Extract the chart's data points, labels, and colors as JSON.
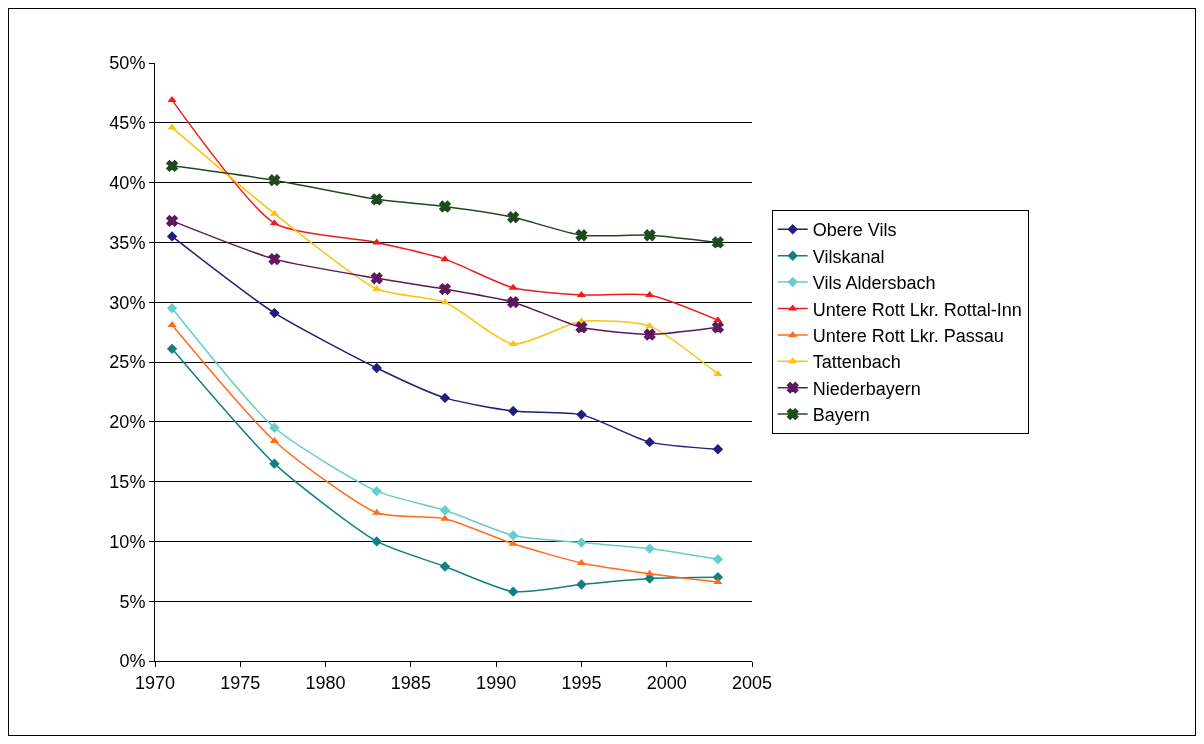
{
  "chart_data": {
    "type": "line",
    "x": [
      1971,
      1977,
      1983,
      1987,
      1991,
      1995,
      1999,
      2003
    ],
    "xlim": [
      1970,
      2005
    ],
    "xticks": [
      1970,
      1975,
      1980,
      1985,
      1990,
      1995,
      2000,
      2005
    ],
    "ylim": [
      0,
      50
    ],
    "yticks": [
      {
        "value": 0,
        "label": "0%"
      },
      {
        "value": 5,
        "label": "5%"
      },
      {
        "value": 10,
        "label": "10%"
      },
      {
        "value": 15,
        "label": "15%"
      },
      {
        "value": 20,
        "label": "20%"
      },
      {
        "value": 25,
        "label": "25%"
      },
      {
        "value": 30,
        "label": "30%"
      },
      {
        "value": 35,
        "label": "35%"
      },
      {
        "value": 40,
        "label": "40%"
      },
      {
        "value": 45,
        "label": "45%"
      },
      {
        "value": 50,
        "label": "50%"
      }
    ],
    "grid": "y",
    "legend": "right",
    "series": [
      {
        "name": "Obere Vils",
        "color": "#1f1f7a",
        "marker": "diamond",
        "values": [
          35.5,
          29.1,
          24.5,
          22.0,
          20.9,
          20.6,
          18.3,
          17.7
        ]
      },
      {
        "name": "Vilskanal",
        "color": "#138080",
        "marker": "diamond",
        "values": [
          26.1,
          16.5,
          10.0,
          7.9,
          5.8,
          6.4,
          6.9,
          7.0
        ]
      },
      {
        "name": "Vils Aldersbach",
        "color": "#66cccc",
        "marker": "diamond",
        "values": [
          29.5,
          19.5,
          14.2,
          12.6,
          10.5,
          9.9,
          9.4,
          8.5
        ]
      },
      {
        "name": "Untere Rott Lkr. Rottal-Inn",
        "color": "#ee1c1c",
        "marker": "triangle",
        "values": [
          46.9,
          36.6,
          35.0,
          33.6,
          31.2,
          30.6,
          30.6,
          28.5
        ]
      },
      {
        "name": "Untere Rott Lkr. Passau",
        "color": "#ff6a1f",
        "marker": "triangle",
        "values": [
          28.1,
          18.4,
          12.4,
          11.9,
          9.8,
          8.2,
          7.3,
          6.6
        ]
      },
      {
        "name": "Tattenbach",
        "color": "#ffc20e",
        "marker": "triangle",
        "values": [
          44.6,
          37.4,
          31.1,
          30.0,
          26.5,
          28.4,
          28.0,
          24.0
        ]
      },
      {
        "name": "Niederbayern",
        "color": "#5c1a5c",
        "marker": "cross",
        "values": [
          36.8,
          33.6,
          32.0,
          31.1,
          30.0,
          27.9,
          27.3,
          27.9
        ]
      },
      {
        "name": "Bayern",
        "color": "#1f4a1f",
        "marker": "cross",
        "values": [
          41.4,
          40.2,
          38.6,
          38.0,
          37.1,
          35.6,
          35.6,
          35.0
        ]
      }
    ]
  }
}
